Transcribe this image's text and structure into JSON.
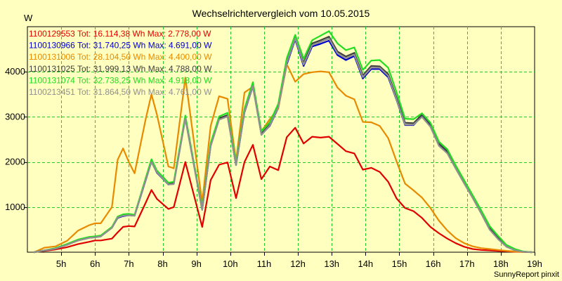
{
  "chart_data": {
    "type": "line",
    "title": "Wechselrichtervergleich vom 10.05.2015",
    "ylabel": "W",
    "xlabel": "",
    "footer": "SunnyReport pinxit",
    "xlim": [
      4,
      19
    ],
    "ylim": [
      0,
      5000
    ],
    "x_ticks": [
      5,
      6,
      7,
      8,
      9,
      10,
      11,
      12,
      13,
      14,
      15,
      16,
      17,
      18,
      19
    ],
    "x_tick_labels": [
      "5h",
      "6h",
      "7h",
      "8h",
      "9h",
      "10h",
      "11h",
      "12h",
      "13h",
      "14h",
      "15h",
      "16h",
      "17h",
      "18h",
      "19h"
    ],
    "y_ticks": [
      1000,
      2000,
      3000,
      4000
    ],
    "y_tick_labels": [
      "1000",
      "2000",
      "3000",
      "4000"
    ],
    "grid": true,
    "x": [
      4.2,
      4.5,
      4.83,
      5.17,
      5.5,
      5.83,
      6.0,
      6.17,
      6.5,
      6.67,
      6.83,
      7.0,
      7.17,
      7.5,
      7.67,
      7.83,
      8.17,
      8.33,
      8.67,
      9.17,
      9.42,
      9.67,
      9.92,
      10.17,
      10.42,
      10.67,
      10.92,
      11.17,
      11.42,
      11.67,
      11.92,
      12.17,
      12.42,
      12.67,
      12.92,
      13.17,
      13.42,
      13.67,
      13.92,
      14.17,
      14.42,
      14.67,
      14.92,
      15.17,
      15.42,
      15.67,
      15.92,
      16.17,
      16.42,
      16.67,
      16.92,
      17.17,
      17.42,
      17.67,
      17.92,
      18.17,
      18.42,
      18.67,
      18.92
    ],
    "series": [
      {
        "name": "1100129553",
        "label": "1100129553 Tot: 16.114,38 Wh Max: 2.778,00 W",
        "color": "#e00000",
        "values": [
          0,
          30,
          60,
          110,
          180,
          230,
          260,
          260,
          300,
          440,
          560,
          580,
          570,
          1100,
          1380,
          1180,
          960,
          1000,
          2000,
          560,
          1600,
          1940,
          1990,
          1200,
          2000,
          2380,
          1620,
          1900,
          1820,
          2550,
          2760,
          2410,
          2560,
          2540,
          2560,
          2400,
          2240,
          2190,
          1830,
          1870,
          1780,
          1560,
          1190,
          980,
          910,
          760,
          560,
          420,
          300,
          200,
          120,
          70,
          50,
          40,
          30,
          20,
          10,
          5,
          0
        ]
      },
      {
        "name": "1100130966",
        "label": "1100130966 Tot: 31.740,25 Wh Max: 4.691,00 W",
        "color": "#0000cc",
        "values": [
          0,
          40,
          80,
          170,
          260,
          320,
          330,
          350,
          540,
          760,
          800,
          820,
          810,
          1600,
          2010,
          1760,
          1500,
          1520,
          2970,
          940,
          2360,
          2950,
          3020,
          1930,
          3100,
          3680,
          2610,
          2800,
          3200,
          4160,
          4720,
          4130,
          4560,
          4620,
          4690,
          4370,
          4260,
          4350,
          3850,
          4060,
          4060,
          3880,
          3370,
          2820,
          2820,
          3020,
          2800,
          2380,
          2220,
          1880,
          1550,
          1230,
          910,
          560,
          340,
          150,
          60,
          10,
          0
        ]
      },
      {
        "name": "1100131006",
        "label": "1100131006 Tot: 28.104,50 Wh Max: 4.400,00 W",
        "color": "#e88a00",
        "values": [
          0,
          100,
          130,
          250,
          480,
          600,
          640,
          640,
          1000,
          2050,
          2300,
          2000,
          1750,
          2960,
          3500,
          3050,
          1900,
          1860,
          3870,
          1100,
          2800,
          3460,
          3400,
          2020,
          3540,
          3670,
          2680,
          2950,
          3180,
          4170,
          3780,
          3950,
          3990,
          4010,
          3990,
          3650,
          3470,
          3390,
          2890,
          2880,
          2800,
          2530,
          2010,
          1520,
          1370,
          1210,
          980,
          700,
          480,
          310,
          200,
          130,
          90,
          70,
          50,
          30,
          15,
          5,
          0
        ]
      },
      {
        "name": "1100131025",
        "label": "1100131025 Tot: 31.999,13 Wh Max: 4.788,00 W",
        "color": "#404040",
        "values": [
          0,
          40,
          80,
          170,
          270,
          330,
          340,
          360,
          550,
          780,
          820,
          830,
          820,
          1620,
          2020,
          1780,
          1510,
          1530,
          2990,
          950,
          2380,
          2970,
          3040,
          1950,
          3130,
          3710,
          2630,
          2830,
          3230,
          4220,
          4770,
          4200,
          4630,
          4700,
          4780,
          4450,
          4340,
          4420,
          3920,
          4130,
          4120,
          3950,
          3420,
          2870,
          2860,
          3050,
          2840,
          2410,
          2240,
          1890,
          1560,
          1230,
          900,
          540,
          320,
          140,
          50,
          10,
          0
        ]
      },
      {
        "name": "1100131074",
        "label": "1100131074 Tot: 32.738,25 Wh Max: 4.918,00 W",
        "color": "#22dd22",
        "values": [
          0,
          40,
          90,
          180,
          280,
          340,
          350,
          370,
          560,
          790,
          840,
          850,
          830,
          1650,
          2060,
          1810,
          1540,
          1560,
          3030,
          970,
          2420,
          3010,
          3090,
          1980,
          3180,
          3770,
          2680,
          2880,
          3290,
          4300,
          4820,
          4290,
          4700,
          4800,
          4900,
          4630,
          4480,
          4540,
          4040,
          4250,
          4260,
          4090,
          3540,
          2960,
          2950,
          3080,
          2870,
          2450,
          2280,
          1920,
          1590,
          1260,
          930,
          580,
          360,
          160,
          70,
          15,
          0
        ]
      },
      {
        "name": "1100213451",
        "label": "1100213451 Tot: 31.864,50 Wh Max: 4.761,00 W",
        "color": "#909090",
        "values": [
          0,
          40,
          80,
          160,
          260,
          320,
          330,
          350,
          540,
          770,
          810,
          820,
          810,
          1610,
          2000,
          1770,
          1500,
          1510,
          2960,
          940,
          2350,
          2940,
          3010,
          1930,
          3110,
          3690,
          2600,
          2810,
          3210,
          4190,
          4740,
          4160,
          4590,
          4660,
          4740,
          4410,
          4300,
          4380,
          3880,
          4090,
          4090,
          3910,
          3380,
          2830,
          2830,
          3000,
          2780,
          2360,
          2190,
          1850,
          1520,
          1200,
          860,
          500,
          290,
          120,
          40,
          10,
          0
        ]
      }
    ]
  }
}
